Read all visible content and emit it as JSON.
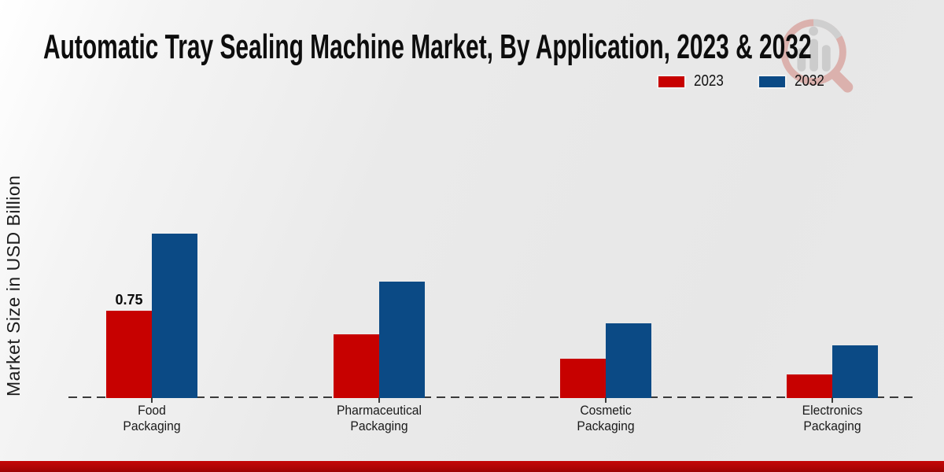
{
  "header": {
    "title": "Automatic Tray Sealing Machine Market, By Application, 2023 & 2032"
  },
  "watermark": {
    "name": "market-research-logo",
    "ring_color": "#c0392b",
    "bars_color": "#8f8f8f"
  },
  "footer": {
    "bar_color": "#b10505"
  },
  "chart_data": {
    "type": "bar",
    "title": "Automatic Tray Sealing Machine Market, By Application, 2023 & 2032",
    "xlabel": "",
    "ylabel": "Market Size in USD Billion",
    "categories": [
      "Food Packaging",
      "Pharmaceutical Packaging",
      "Cosmetic Packaging",
      "Electronics Packaging"
    ],
    "series": [
      {
        "name": "2023",
        "color": "#c70100",
        "values": [
          0.75,
          0.55,
          0.34,
          0.2
        ],
        "labels": [
          "0.75",
          "",
          "",
          ""
        ]
      },
      {
        "name": "2032",
        "color": "#0b4a85",
        "values": [
          1.41,
          1.0,
          0.64,
          0.45
        ],
        "labels": [
          "",
          "",
          "",
          ""
        ]
      }
    ],
    "ylim": [
      0,
      1.5
    ],
    "grid": false,
    "y_ticks_visible": false,
    "baseline_style": "dashed",
    "legend_position": "top-right"
  }
}
